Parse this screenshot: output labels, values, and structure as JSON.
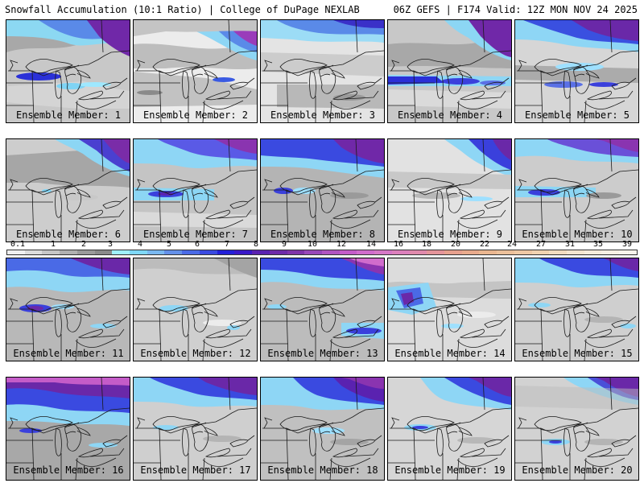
{
  "header": {
    "title_left": "Snowfall Accumulation (10:1 Ratio) | College of DuPage NEXLAB",
    "title_right": "06Z GEFS | F174 Valid: 12Z MON NOV 24 2025"
  },
  "members": [
    {
      "label": "Ensemble Member: 1"
    },
    {
      "label": "Ensemble Member: 2"
    },
    {
      "label": "Ensemble Member: 3"
    },
    {
      "label": "Ensemble Member: 4"
    },
    {
      "label": "Ensemble Member: 5"
    },
    {
      "label": "Ensemble Member: 6"
    },
    {
      "label": "Ensemble Member: 7"
    },
    {
      "label": "Ensemble Member: 8"
    },
    {
      "label": "Ensemble Member: 9"
    },
    {
      "label": "Ensemble Member: 10"
    },
    {
      "label": "Ensemble Member: 11"
    },
    {
      "label": "Ensemble Member: 12"
    },
    {
      "label": "Ensemble Member: 13"
    },
    {
      "label": "Ensemble Member: 14"
    },
    {
      "label": "Ensemble Member: 15"
    },
    {
      "label": "Ensemble Member: 16"
    },
    {
      "label": "Ensemble Member: 17"
    },
    {
      "label": "Ensemble Member: 18"
    },
    {
      "label": "Ensemble Member: 19"
    },
    {
      "label": "Ensemble Member: 20"
    }
  ],
  "color_scale": {
    "labels": [
      "0.1",
      "1",
      "2",
      "3",
      "4",
      "5",
      "6",
      "7",
      "8",
      "9",
      "10",
      "12",
      "14",
      "16",
      "18",
      "20",
      "22",
      "24",
      "27",
      "31",
      "35",
      "39"
    ],
    "colors": [
      "#f0f0f0",
      "#dcdcdc",
      "#c6c6c6",
      "#b0b0b0",
      "#9a9a9a",
      "#8a8a8a",
      "#9ff0ff",
      "#7fd8f8",
      "#7ab8f0",
      "#6490e8",
      "#4a6ae6",
      "#3a4ae0",
      "#2420d8",
      "#3a18c8",
      "#5a22b0",
      "#6e2aa8",
      "#8034a8",
      "#9848b8",
      "#b054c0",
      "#c45cc8",
      "#d06ccc",
      "#d678c6",
      "#dc80bc",
      "#e08aac",
      "#e4949a",
      "#e6a08e",
      "#e8aa8c",
      "#eab690",
      "#ecc09a",
      "#eec8a4",
      "#f0d2b0",
      "#f2dcc0",
      "#f4e6d0",
      "#f6ecdc",
      "#f8f0e4",
      "#faf4ec"
    ]
  }
}
